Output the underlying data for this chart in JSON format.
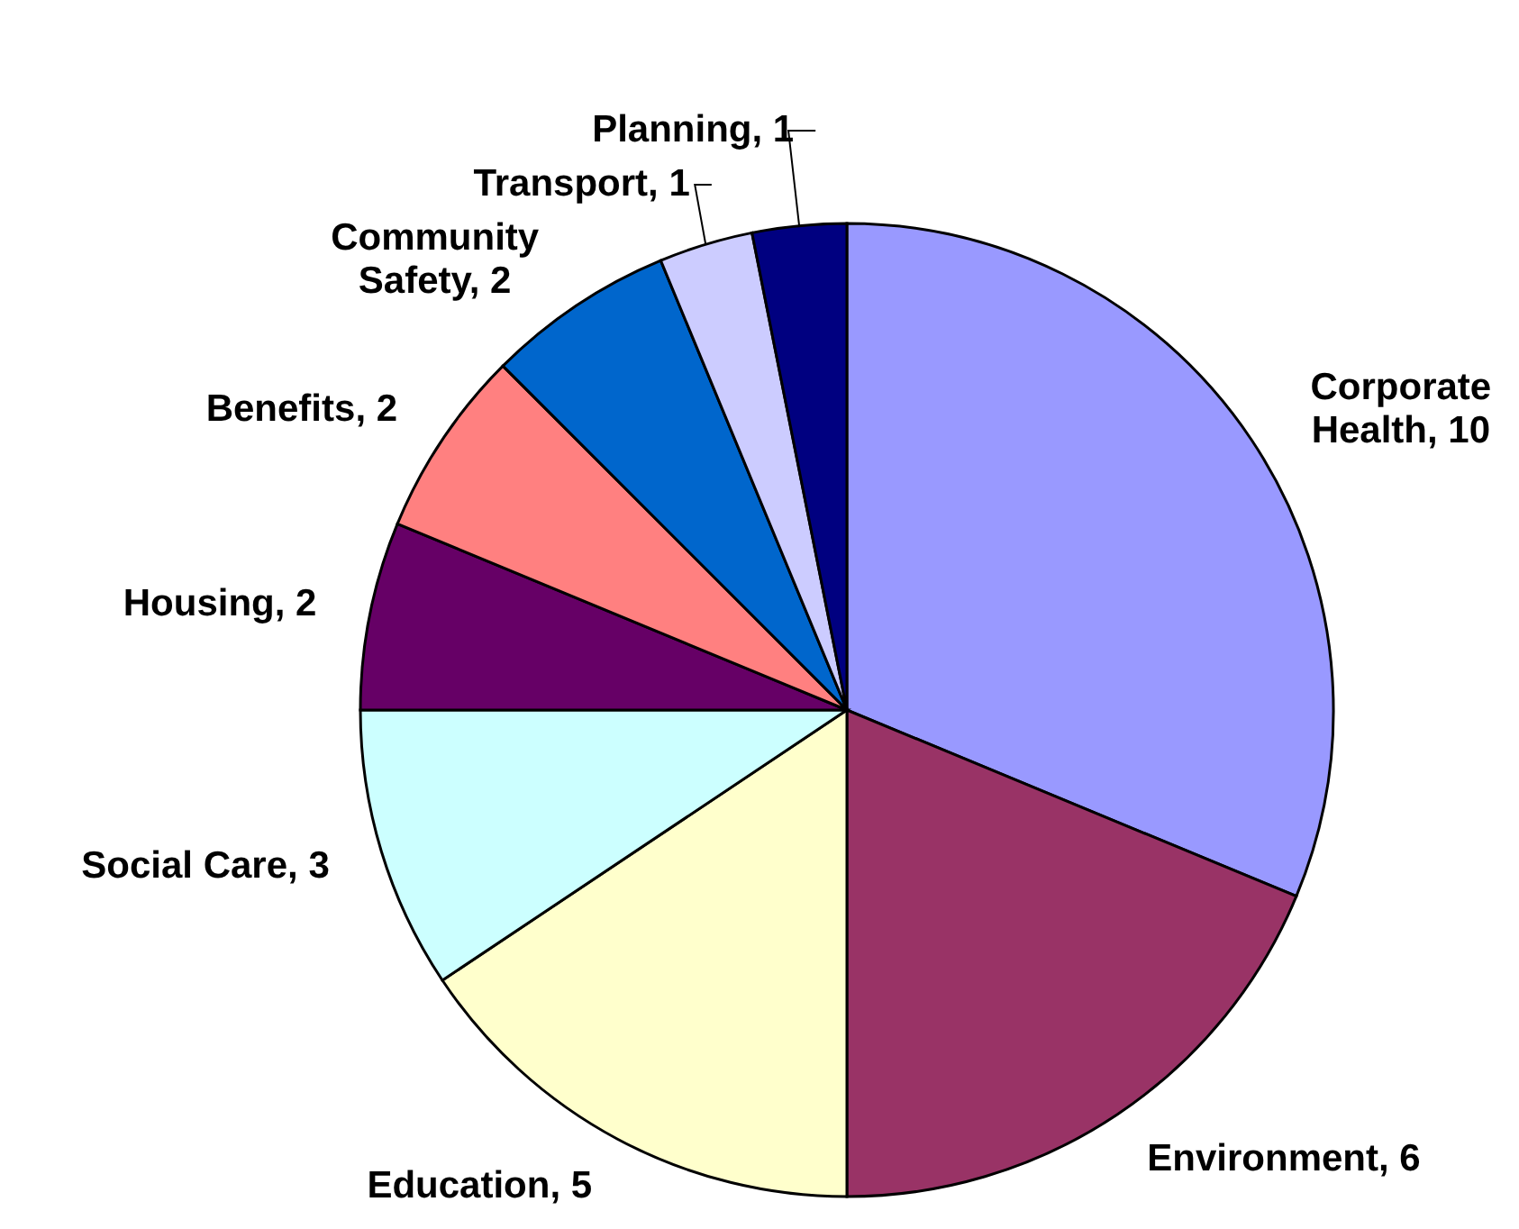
{
  "chart_data": {
    "type": "pie",
    "categories": [
      "Corporate Health",
      "Environment",
      "Education",
      "Social Care",
      "Housing",
      "Benefits",
      "Community Safety",
      "Transport",
      "Planning"
    ],
    "values": [
      10,
      6,
      5,
      3,
      2,
      2,
      2,
      1,
      1
    ],
    "value_labels": [
      ", 10",
      ", 6",
      ", 5",
      ", 3",
      ", 2",
      ", 2",
      ", 2",
      ", 1",
      ", 1"
    ],
    "colors": [
      "#9999ff",
      "#993366",
      "#ffffcc",
      "#ccffff",
      "#660066",
      "#ff8080",
      "#0066cc",
      "#ccccff",
      "#000080"
    ]
  }
}
